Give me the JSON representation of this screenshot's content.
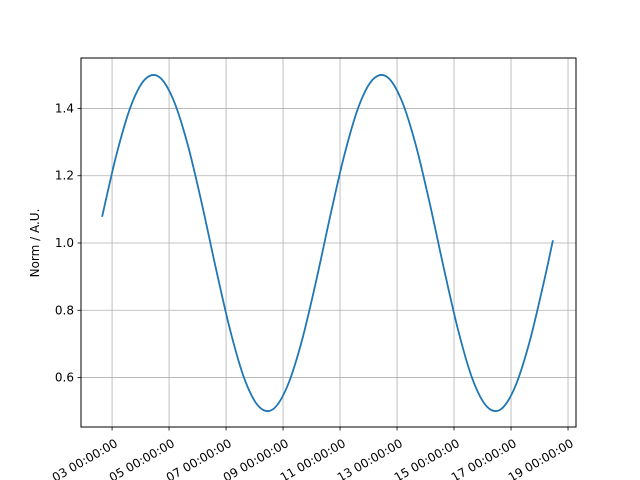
{
  "chart_data": {
    "type": "line",
    "title": "",
    "xlabel": "",
    "ylabel": "Norm / A.U.",
    "x_unit": "day of month (date axis)",
    "xlim": [
      1.91,
      19.28
    ],
    "ylim": [
      0.453,
      1.55
    ],
    "grid": true,
    "line_color": "#1f77b4",
    "x_ticks": [
      3,
      5,
      7,
      9,
      11,
      13,
      15,
      17,
      19
    ],
    "x_tick_labels": [
      "03 00:00:00",
      "05 00:00:00",
      "07 00:00:00",
      "09 00:00:00",
      "11 00:00:00",
      "13 00:00:00",
      "15 00:00:00",
      "17 00:00:00",
      "19 00:00:00"
    ],
    "y_ticks": [
      0.6,
      0.8,
      1.0,
      1.2,
      1.4
    ],
    "y_tick_labels": [
      "0.6",
      "0.8",
      "1.0",
      "1.2",
      "1.4"
    ],
    "series": [
      {
        "x": [
          2.65,
          3.15,
          3.65,
          4.15,
          4.65,
          5.15,
          5.65,
          6.15,
          6.65,
          7.15,
          7.65,
          8.15,
          8.65,
          9.15,
          9.65,
          10.15,
          10.65,
          11.15,
          11.65,
          12.15,
          12.65,
          13.15,
          13.65,
          14.15,
          14.65,
          15.15,
          15.65,
          16.15,
          16.65,
          17.15,
          17.65,
          18.15,
          18.47
        ],
        "y": [
          1.078,
          1.261,
          1.405,
          1.486,
          1.494,
          1.426,
          1.294,
          1.117,
          0.922,
          0.739,
          0.595,
          0.514,
          0.506,
          0.574,
          0.706,
          0.883,
          1.078,
          1.261,
          1.405,
          1.486,
          1.494,
          1.426,
          1.294,
          1.117,
          0.922,
          0.739,
          0.595,
          0.514,
          0.506,
          0.574,
          0.706,
          0.883,
          1.008
        ]
      }
    ]
  }
}
